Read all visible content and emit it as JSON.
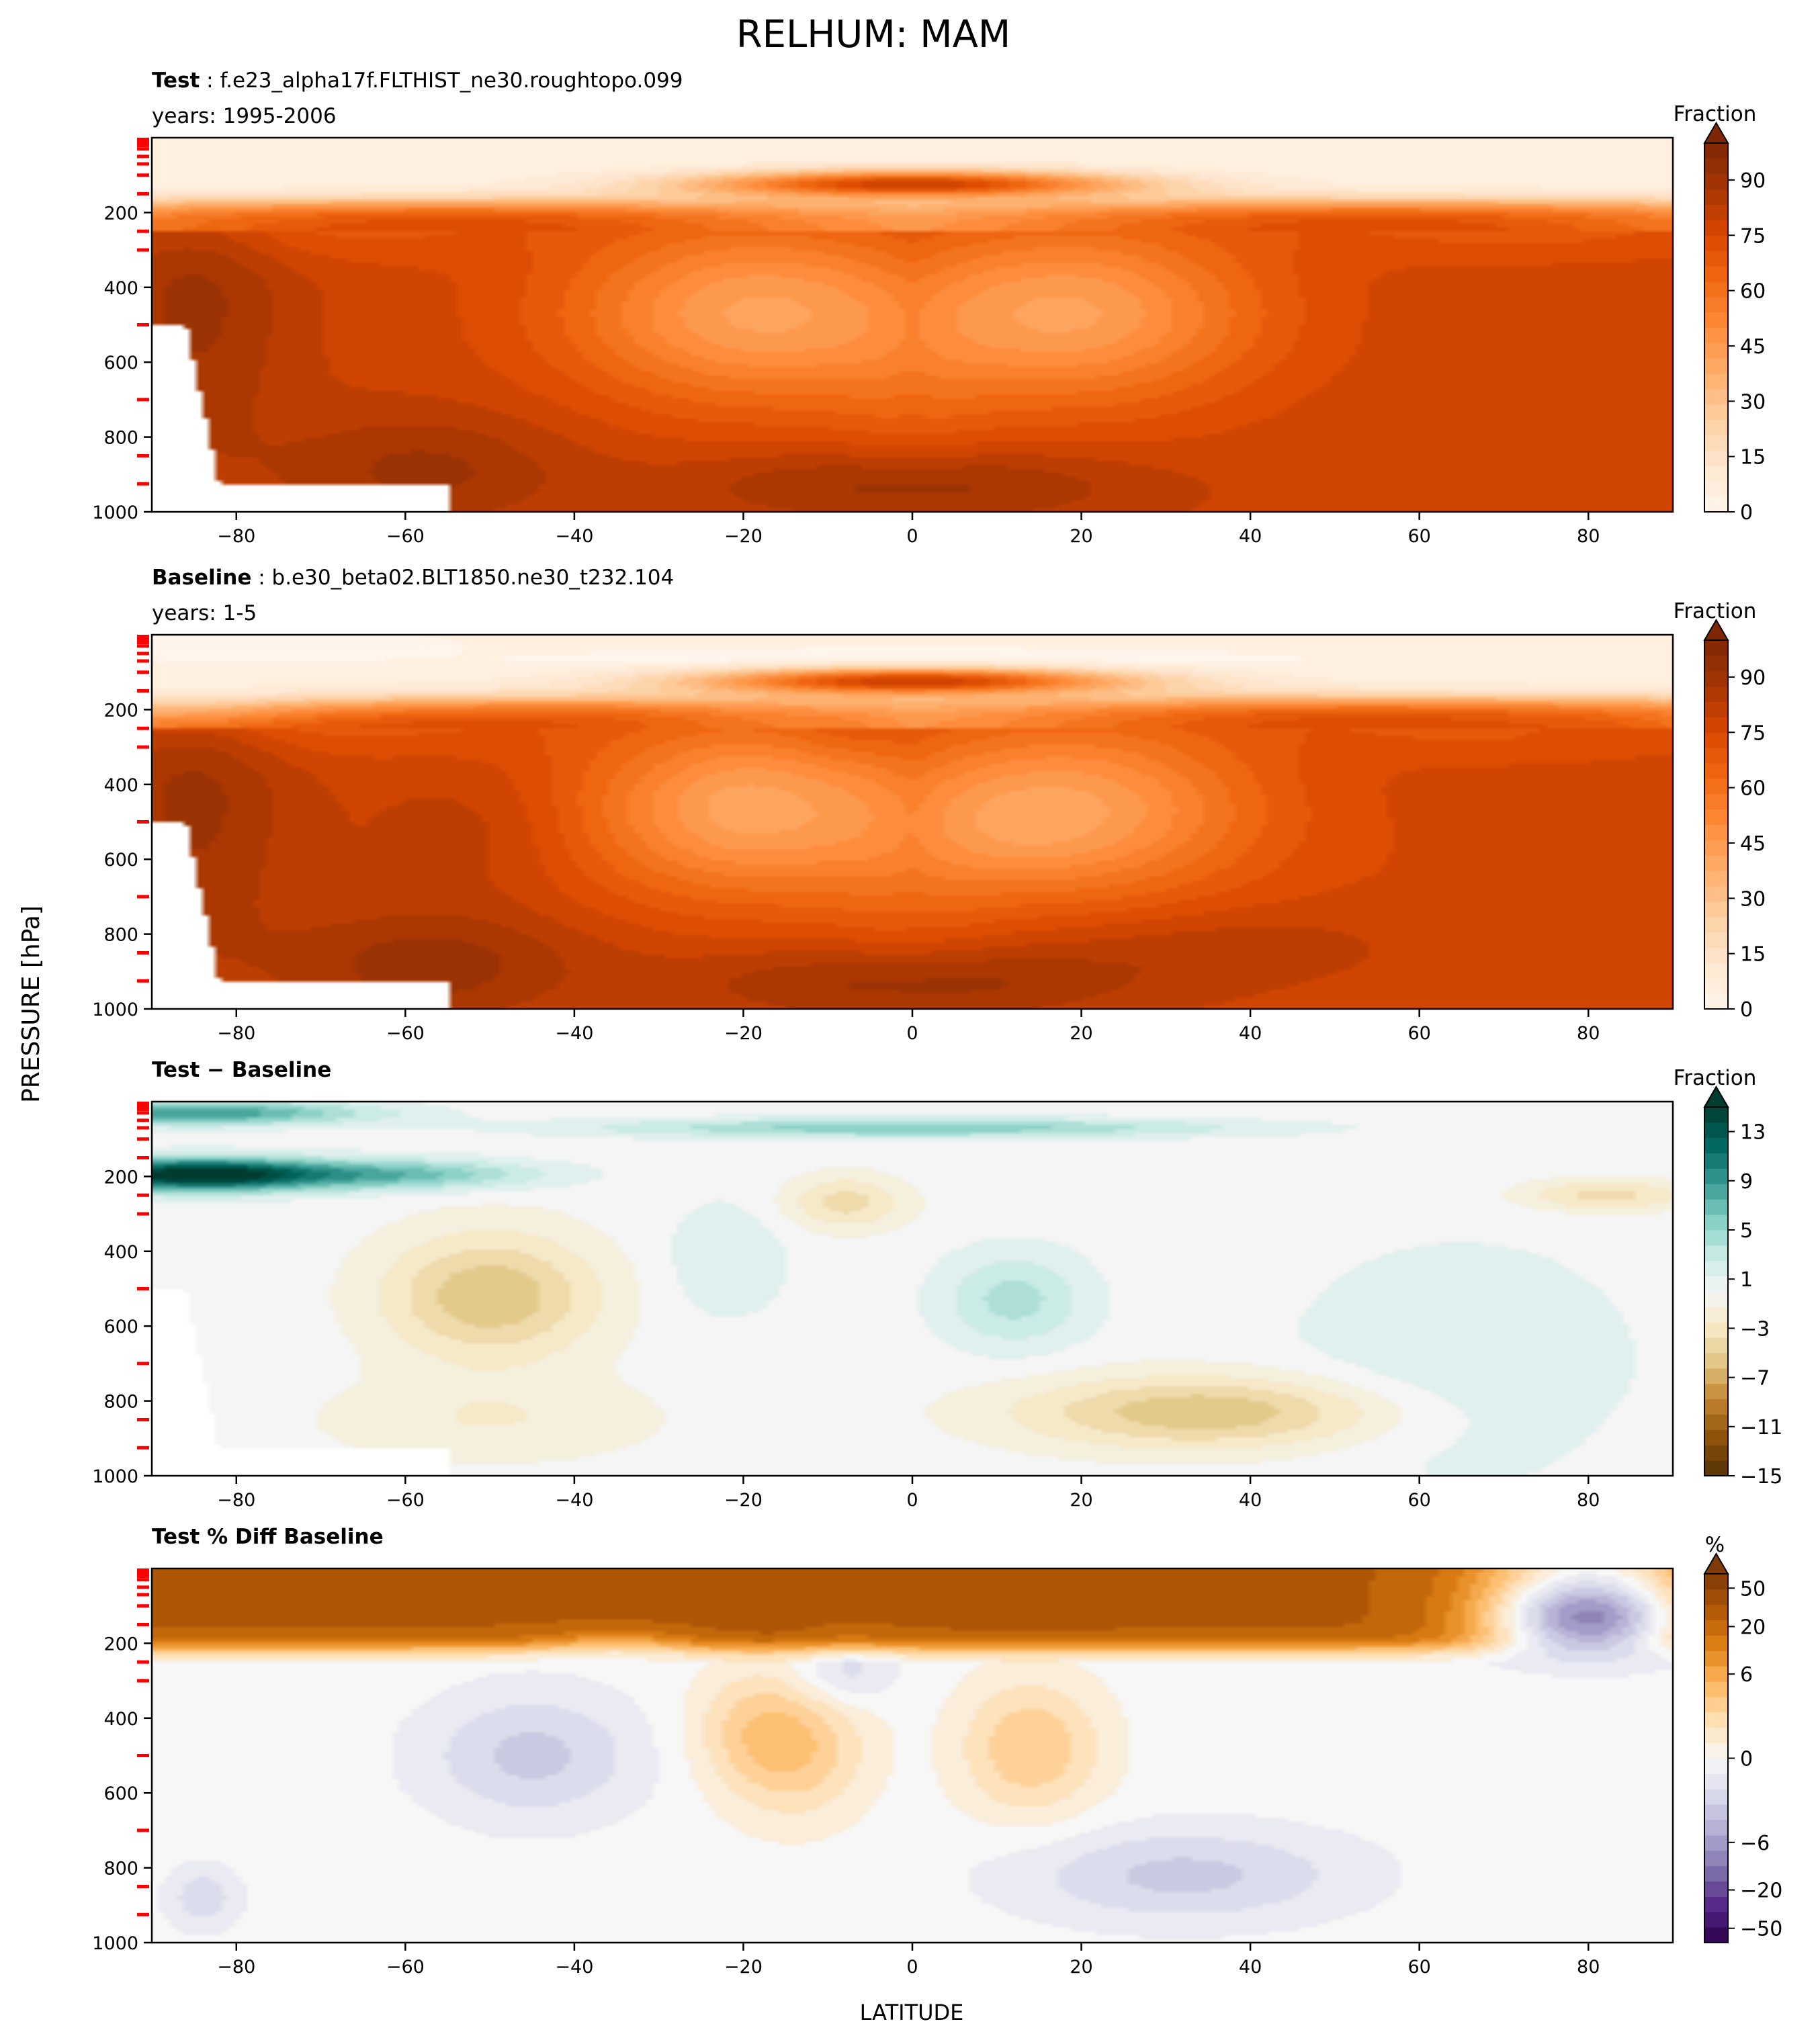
{
  "figure": {
    "title": "RELHUM: MAM",
    "ylabel": "PRESSURE [hPa]",
    "xlabel": "LATITUDE"
  },
  "colors": {
    "oranges": [
      "#fff5eb",
      "#fee6ce",
      "#fdd0a2",
      "#fdae6b",
      "#fd8d3c",
      "#f16913",
      "#d94801",
      "#a63603",
      "#7f2704"
    ],
    "brbg": [
      "#543005",
      "#8c510a",
      "#bf812d",
      "#dfc27d",
      "#f6e8c3",
      "#f5f5f5",
      "#c7eae5",
      "#80cdc1",
      "#35978f",
      "#01665e",
      "#003c30"
    ],
    "puor": [
      "#2d004b",
      "#542788",
      "#8073ac",
      "#b2abd2",
      "#d8daeb",
      "#f7f7f7",
      "#fee0b6",
      "#fdb863",
      "#e08214",
      "#b35806",
      "#7f3b08"
    ],
    "level_marks": "#ff0000"
  },
  "chart_data": [
    {
      "type": "heatmap",
      "name": "Test",
      "title_bold": "Test",
      "title_rest": " : f.e23_alpha17f.FLTHIST_ne30.roughtopo.099",
      "years": "years: 1995-2006",
      "colorbar_label": "Fraction",
      "colormap": "oranges",
      "vmin": 0,
      "vmax": 100,
      "colorbar_ticks": [
        "0",
        "15",
        "30",
        "45",
        "60",
        "75",
        "90"
      ],
      "colorbar_tick_values": [
        0,
        15,
        30,
        45,
        60,
        75,
        90
      ],
      "xlim": [
        -90,
        90
      ],
      "ylim": [
        1000,
        0
      ],
      "xticks": [
        -80,
        -60,
        -40,
        -20,
        0,
        20,
        40,
        60,
        80
      ],
      "xtick_labels": [
        "−80",
        "−60",
        "−40",
        "−20",
        "0",
        "20",
        "40",
        "60",
        "80"
      ],
      "yticks": [
        200,
        400,
        600,
        800,
        1000
      ],
      "ytick_labels": [
        "200",
        "400",
        "600",
        "800",
        "1000"
      ],
      "model_levels_hPa": [
        5,
        15,
        30,
        50,
        70,
        100,
        150,
        250,
        300,
        500,
        700,
        850,
        925
      ],
      "field": "relhum"
    },
    {
      "type": "heatmap",
      "name": "Baseline",
      "title_bold": "Baseline",
      "title_rest": " : b.e30_beta02.BLT1850.ne30_t232.104",
      "years": "years: 1-5",
      "colorbar_label": "Fraction",
      "colormap": "oranges",
      "vmin": 0,
      "vmax": 100,
      "colorbar_ticks": [
        "0",
        "15",
        "30",
        "45",
        "60",
        "75",
        "90"
      ],
      "colorbar_tick_values": [
        0,
        15,
        30,
        45,
        60,
        75,
        90
      ],
      "xlim": [
        -90,
        90
      ],
      "ylim": [
        1000,
        0
      ],
      "xticks": [
        -80,
        -60,
        -40,
        -20,
        0,
        20,
        40,
        60,
        80
      ],
      "xtick_labels": [
        "−80",
        "−60",
        "−40",
        "−20",
        "0",
        "20",
        "40",
        "60",
        "80"
      ],
      "yticks": [
        200,
        400,
        600,
        800,
        1000
      ],
      "ytick_labels": [
        "200",
        "400",
        "600",
        "800",
        "1000"
      ],
      "model_levels_hPa": [
        5,
        15,
        30,
        50,
        70,
        100,
        150,
        250,
        300,
        500,
        700,
        850,
        925
      ],
      "field": "relhum_base"
    },
    {
      "type": "heatmap",
      "name": "Test − Baseline",
      "title_bold": "Test − Baseline",
      "title_rest": "",
      "years": "",
      "colorbar_label": "Fraction",
      "colormap": "brbg",
      "vmin": -15,
      "vmax": 15,
      "colorbar_ticks": [
        "−15",
        "−11",
        "−7",
        "−3",
        "1",
        "5",
        "9",
        "13"
      ],
      "colorbar_tick_values": [
        -15,
        -11,
        -7,
        -3,
        1,
        5,
        9,
        13
      ],
      "xlim": [
        -90,
        90
      ],
      "ylim": [
        1000,
        0
      ],
      "xticks": [
        -80,
        -60,
        -40,
        -20,
        0,
        20,
        40,
        60,
        80
      ],
      "xtick_labels": [
        "−80",
        "−60",
        "−40",
        "−20",
        "0",
        "20",
        "40",
        "60",
        "80"
      ],
      "yticks": [
        200,
        400,
        600,
        800,
        1000
      ],
      "ytick_labels": [
        "200",
        "400",
        "600",
        "800",
        "1000"
      ],
      "model_levels_hPa": [
        5,
        15,
        30,
        50,
        70,
        100,
        150,
        250,
        300,
        500,
        700,
        850,
        925
      ],
      "field": "diff"
    },
    {
      "type": "heatmap",
      "name": "Test % Diff Baseline",
      "title_bold": "Test % Diff Baseline",
      "title_rest": "",
      "years": "",
      "colorbar_label": "%",
      "colormap": "puor",
      "vmin": -70,
      "vmax": 70,
      "colorbar_ticks": [
        "−50",
        "−20",
        "−6",
        "0",
        "6",
        "20",
        "50"
      ],
      "colorbar_tick_values": [
        -50,
        -20,
        -6,
        0,
        6,
        20,
        50
      ],
      "xlim": [
        -90,
        90
      ],
      "ylim": [
        1000,
        0
      ],
      "xticks": [
        -80,
        -60,
        -40,
        -20,
        0,
        20,
        40,
        60,
        80
      ],
      "xtick_labels": [
        "−80",
        "−60",
        "−40",
        "−20",
        "0",
        "20",
        "40",
        "60",
        "80"
      ],
      "yticks": [
        200,
        400,
        600,
        800,
        1000
      ],
      "ytick_labels": [
        "200",
        "400",
        "600",
        "800",
        "1000"
      ],
      "model_levels_hPa": [
        5,
        15,
        30,
        50,
        70,
        100,
        150,
        250,
        300,
        500,
        700,
        850,
        925
      ],
      "field": "pct"
    }
  ]
}
